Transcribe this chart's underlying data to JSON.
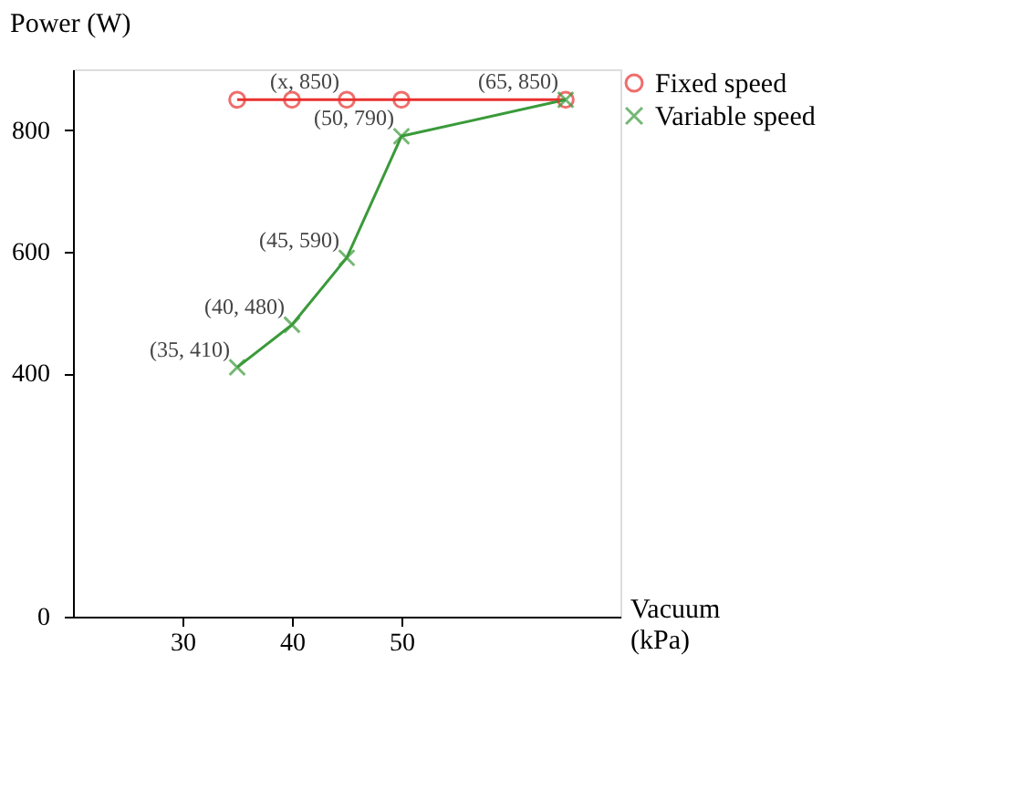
{
  "chart_data": {
    "type": "line",
    "xlabel": "Vacuum (kPa)",
    "ylabel": "Power (W)",
    "xlim": [
      20,
      70
    ],
    "xticks": [
      30,
      40,
      50
    ],
    "ylim": [
      0,
      900
    ],
    "yticks": [
      0,
      400,
      600,
      800
    ],
    "grid": false,
    "legend": "right",
    "series": [
      {
        "name": "Fixed speed",
        "color": "#e8312f",
        "marker": "circle",
        "x": [
          35,
          40,
          45,
          50,
          65
        ],
        "values": [
          850,
          850,
          850,
          850,
          850
        ]
      },
      {
        "name": "Variable speed",
        "color": "#3a9a3a",
        "marker": "cross",
        "x": [
          35,
          40,
          45,
          50,
          65
        ],
        "values": [
          410,
          480,
          590,
          790,
          850
        ]
      }
    ],
    "annotations": [
      {
        "text": "(x, 850)",
        "x": 45,
        "y": 850
      },
      {
        "text": "(35, 410)",
        "x": 35,
        "y": 410
      },
      {
        "text": "(40, 480)",
        "x": 40,
        "y": 480
      },
      {
        "text": "(45, 590)",
        "x": 45,
        "y": 590
      },
      {
        "text": "(50, 790)",
        "x": 50,
        "y": 790
      },
      {
        "text": "(65, 850)",
        "x": 65,
        "y": 850
      }
    ]
  }
}
